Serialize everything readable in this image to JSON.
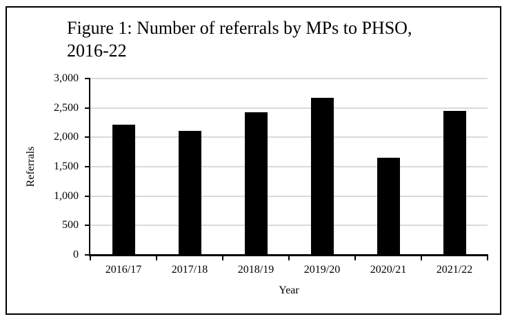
{
  "chart_data": {
    "type": "bar",
    "title": "Figure 1: Number of referrals by MPs to PHSO, 2016-22",
    "title_lines": [
      "Figure 1: Number of referrals by MPs to PHSO,",
      "2016-22"
    ],
    "categories": [
      "2016/17",
      "2017/18",
      "2018/19",
      "2019/20",
      "2020/21",
      "2021/22"
    ],
    "values": [
      2220,
      2110,
      2430,
      2670,
      1650,
      2450
    ],
    "xlabel": "Year",
    "ylabel": "Referrals",
    "ylim": [
      0,
      3000
    ],
    "ytick_values": [
      0,
      500,
      1000,
      1500,
      2000,
      2500,
      3000
    ],
    "ytick_labels": [
      "0",
      "500",
      "1,000",
      "1,500",
      "2,000",
      "2,500",
      "3,000"
    ],
    "grid": "horizontal-major",
    "legend": "none",
    "bar_color": "#000000",
    "gridline_color": "#d9d9d9",
    "text_color": "#000000",
    "background_color": "#ffffff"
  }
}
